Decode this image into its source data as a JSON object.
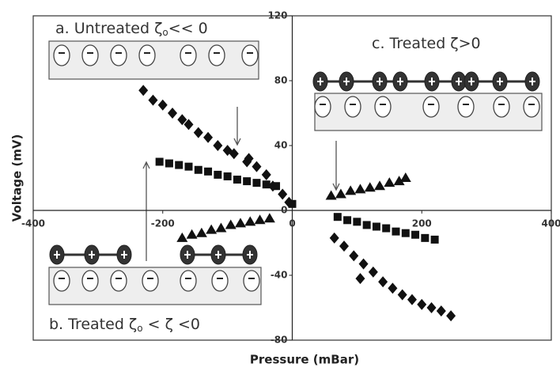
{
  "chart_data": {
    "type": "scatter",
    "xlabel": "Pressure (mBar)",
    "ylabel": "Voltage (mV)",
    "xlim": [
      -400,
      400
    ],
    "ylim": [
      -80,
      120
    ],
    "xticks": [
      -400,
      -200,
      0,
      200,
      400
    ],
    "yticks": [
      -80,
      -40,
      0,
      40,
      80,
      120
    ],
    "series": [
      {
        "marker": "diamond",
        "color": "#111",
        "x": [
          -230,
          -215,
          -200,
          -185,
          -170,
          -160,
          -145,
          -130,
          -115,
          -100,
          -90,
          -70,
          -67,
          -55,
          -40,
          -30,
          -15,
          -5,
          65,
          80,
          95,
          105,
          110,
          125,
          140,
          155,
          170,
          185,
          200,
          215,
          230,
          245
        ],
        "values": [
          74,
          68,
          65,
          60,
          56,
          53,
          48,
          45,
          40,
          37,
          35,
          30,
          32,
          27,
          22,
          15,
          10,
          5,
          -17,
          -22,
          -28,
          -42,
          -33,
          -38,
          -44,
          -48,
          -52,
          -55,
          -58,
          -60,
          -62,
          -65
        ]
      },
      {
        "marker": "square",
        "color": "#111",
        "x": [
          -205,
          -190,
          -175,
          -160,
          -145,
          -130,
          -115,
          -100,
          -85,
          -70,
          -55,
          -40,
          -25,
          0,
          70,
          85,
          100,
          115,
          130,
          145,
          160,
          175,
          190,
          205,
          220
        ],
        "values": [
          30,
          29,
          28,
          27,
          25,
          24,
          22,
          21,
          19,
          18,
          17,
          16,
          15,
          4,
          -4,
          -6,
          -7,
          -9,
          -10,
          -11,
          -13,
          -14,
          -15,
          -17,
          -18
        ]
      },
      {
        "marker": "triangle",
        "color": "#111",
        "x": [
          -170,
          -155,
          -140,
          -125,
          -110,
          -95,
          -80,
          -65,
          -50,
          -35,
          60,
          75,
          90,
          105,
          120,
          135,
          150,
          165,
          175
        ],
        "values": [
          -17,
          -15,
          -14,
          -12,
          -11,
          -9,
          -8,
          -7,
          -6,
          -5,
          9,
          10,
          12,
          13,
          14,
          15,
          17,
          18,
          20
        ]
      }
    ],
    "annotations": [
      {
        "parts": [
          "a. Untreated ζ",
          "o",
          "<< 0"
        ]
      },
      {
        "parts": [
          "b. Treated ζ",
          "o",
          " < ζ <0"
        ]
      },
      {
        "parts": [
          "c. Treated ζ>0"
        ]
      }
    ]
  }
}
